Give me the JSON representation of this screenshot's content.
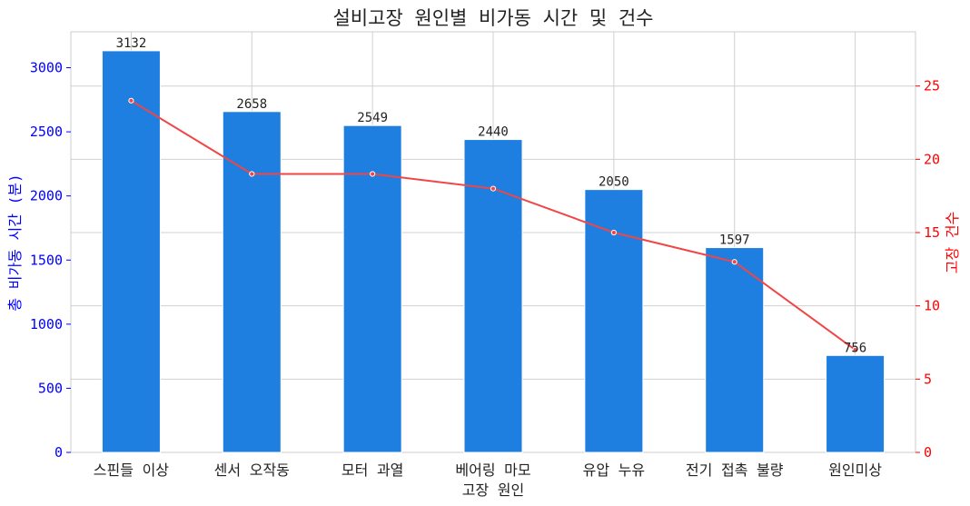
{
  "chart_data": {
    "type": "bar",
    "title": "설비고장 원인별 비가동 시간 및 건수",
    "xlabel": "고장 원인",
    "ylabel": "총 비가동 시간 (분)",
    "y2label": "고장 건수",
    "categories": [
      "스핀들 이상",
      "센서 오작동",
      "모터 과열",
      "베어링 마모",
      "유압 누유",
      "전기 접촉 불량",
      "원인미상"
    ],
    "series": [
      {
        "type": "bar",
        "axis": "left",
        "color": "#1f7fe0",
        "values": [
          3132,
          2658,
          2549,
          2440,
          2050,
          1597,
          756
        ]
      },
      {
        "type": "line",
        "axis": "right",
        "color": "#f04646",
        "values": [
          24,
          19,
          19,
          18,
          15,
          13,
          7
        ]
      }
    ],
    "ylim": [
      0,
      3280
    ],
    "y2lim": [
      0,
      28.7
    ],
    "yticks": [
      "0",
      "500",
      "1000",
      "1500",
      "2000",
      "2500",
      "3000"
    ],
    "y2ticks": [
      "0",
      "5",
      "10",
      "15",
      "20",
      "25"
    ],
    "left_axis_color": "#0000ff",
    "right_axis_color": "#ff0000",
    "grid": true
  }
}
